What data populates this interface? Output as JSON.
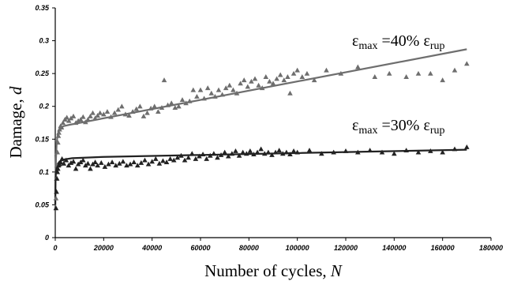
{
  "chart_data": {
    "type": "scatter",
    "xlabel": "Number of cycles,",
    "xlabel_var": "N",
    "ylabel": "Damage,",
    "ylabel_var": "d",
    "xlim": [
      0,
      180000
    ],
    "ylim": [
      0,
      0.35
    ],
    "x_ticks": [
      "0",
      "20000",
      "40000",
      "60000",
      "80000",
      "100000",
      "120000",
      "140000",
      "160000",
      "180000"
    ],
    "y_ticks": [
      "0",
      "0.05",
      "0.1",
      "0.15",
      "0.2",
      "0.25",
      "0.3",
      "0.35"
    ],
    "grid": false,
    "marker": "triangle",
    "series": [
      {
        "label_parts": [
          "ε",
          "max",
          " =40% ε",
          "rup"
        ],
        "color": "#6e6e6e",
        "points": [
          [
            300,
            0.06
          ],
          [
            500,
            0.09
          ],
          [
            700,
            0.11
          ],
          [
            900,
            0.13
          ],
          [
            1100,
            0.145
          ],
          [
            1300,
            0.155
          ],
          [
            1500,
            0.16
          ],
          [
            1800,
            0.165
          ],
          [
            2200,
            0.17
          ],
          [
            2600,
            0.168
          ],
          [
            3200,
            0.175
          ],
          [
            4000,
            0.18
          ],
          [
            4800,
            0.183
          ],
          [
            5600,
            0.178
          ],
          [
            6500,
            0.182
          ],
          [
            7500,
            0.185
          ],
          [
            8500,
            0.175
          ],
          [
            9500,
            0.178
          ],
          [
            10500,
            0.18
          ],
          [
            11500,
            0.184
          ],
          [
            12500,
            0.176
          ],
          [
            13500,
            0.18
          ],
          [
            14500,
            0.185
          ],
          [
            15500,
            0.19
          ],
          [
            16500,
            0.182
          ],
          [
            17500,
            0.186
          ],
          [
            18500,
            0.19
          ],
          [
            20000,
            0.188
          ],
          [
            21500,
            0.192
          ],
          [
            23000,
            0.184
          ],
          [
            24500,
            0.19
          ],
          [
            26000,
            0.195
          ],
          [
            27500,
            0.2
          ],
          [
            29000,
            0.188
          ],
          [
            30500,
            0.186
          ],
          [
            32000,
            0.192
          ],
          [
            33500,
            0.196
          ],
          [
            35000,
            0.2
          ],
          [
            36500,
            0.185
          ],
          [
            38000,
            0.19
          ],
          [
            39500,
            0.197
          ],
          [
            41000,
            0.2
          ],
          [
            42500,
            0.192
          ],
          [
            44000,
            0.198
          ],
          [
            45000,
            0.24
          ],
          [
            46500,
            0.202
          ],
          [
            48000,
            0.205
          ],
          [
            49500,
            0.198
          ],
          [
            51000,
            0.2
          ],
          [
            52500,
            0.21
          ],
          [
            54000,
            0.205
          ],
          [
            55500,
            0.208
          ],
          [
            57000,
            0.225
          ],
          [
            58500,
            0.215
          ],
          [
            60000,
            0.225
          ],
          [
            61500,
            0.212
          ],
          [
            63000,
            0.228
          ],
          [
            64500,
            0.22
          ],
          [
            66000,
            0.215
          ],
          [
            67500,
            0.225
          ],
          [
            69000,
            0.218
          ],
          [
            70500,
            0.228
          ],
          [
            72000,
            0.232
          ],
          [
            73500,
            0.225
          ],
          [
            75000,
            0.22
          ],
          [
            76500,
            0.235
          ],
          [
            78000,
            0.24
          ],
          [
            79500,
            0.23
          ],
          [
            81000,
            0.238
          ],
          [
            82500,
            0.242
          ],
          [
            84000,
            0.232
          ],
          [
            85500,
            0.228
          ],
          [
            87000,
            0.245
          ],
          [
            88500,
            0.238
          ],
          [
            90000,
            0.235
          ],
          [
            91500,
            0.242
          ],
          [
            93000,
            0.248
          ],
          [
            94500,
            0.24
          ],
          [
            96000,
            0.245
          ],
          [
            97000,
            0.22
          ],
          [
            98500,
            0.25
          ],
          [
            100000,
            0.255
          ],
          [
            102000,
            0.245
          ],
          [
            104000,
            0.25
          ],
          [
            107000,
            0.24
          ],
          [
            112000,
            0.255
          ],
          [
            118000,
            0.25
          ],
          [
            125000,
            0.26
          ],
          [
            132000,
            0.245
          ],
          [
            138000,
            0.25
          ],
          [
            145000,
            0.245
          ],
          [
            150000,
            0.25
          ],
          [
            155000,
            0.25
          ],
          [
            160000,
            0.24
          ],
          [
            165000,
            0.255
          ],
          [
            170000,
            0.265
          ]
        ]
      },
      {
        "label_parts": [
          "ε",
          "max",
          " =30% ε",
          "rup"
        ],
        "color": "#222222",
        "points": [
          [
            300,
            0.045
          ],
          [
            500,
            0.07
          ],
          [
            700,
            0.09
          ],
          [
            900,
            0.1
          ],
          [
            1100,
            0.105
          ],
          [
            1400,
            0.11
          ],
          [
            1800,
            0.112
          ],
          [
            2200,
            0.115
          ],
          [
            2800,
            0.12
          ],
          [
            3500,
            0.113
          ],
          [
            4500,
            0.118
          ],
          [
            5500,
            0.11
          ],
          [
            6500,
            0.114
          ],
          [
            7500,
            0.116
          ],
          [
            8500,
            0.105
          ],
          [
            9500,
            0.112
          ],
          [
            10500,
            0.115
          ],
          [
            11500,
            0.118
          ],
          [
            12500,
            0.11
          ],
          [
            13500,
            0.113
          ],
          [
            14500,
            0.105
          ],
          [
            15500,
            0.112
          ],
          [
            16500,
            0.115
          ],
          [
            17500,
            0.11
          ],
          [
            19000,
            0.114
          ],
          [
            20500,
            0.108
          ],
          [
            22000,
            0.112
          ],
          [
            23500,
            0.115
          ],
          [
            25000,
            0.11
          ],
          [
            26500,
            0.113
          ],
          [
            28000,
            0.116
          ],
          [
            29500,
            0.11
          ],
          [
            31000,
            0.112
          ],
          [
            32500,
            0.115
          ],
          [
            34000,
            0.11
          ],
          [
            35500,
            0.114
          ],
          [
            37000,
            0.118
          ],
          [
            38500,
            0.112
          ],
          [
            40000,
            0.116
          ],
          [
            41500,
            0.12
          ],
          [
            43000,
            0.113
          ],
          [
            44500,
            0.117
          ],
          [
            46000,
            0.115
          ],
          [
            47500,
            0.12
          ],
          [
            49000,
            0.118
          ],
          [
            50500,
            0.122
          ],
          [
            52000,
            0.125
          ],
          [
            53500,
            0.118
          ],
          [
            55000,
            0.122
          ],
          [
            56500,
            0.128
          ],
          [
            58000,
            0.12
          ],
          [
            59500,
            0.124
          ],
          [
            61000,
            0.127
          ],
          [
            62500,
            0.12
          ],
          [
            64000,
            0.125
          ],
          [
            65500,
            0.128
          ],
          [
            67000,
            0.122
          ],
          [
            68500,
            0.126
          ],
          [
            70000,
            0.13
          ],
          [
            71500,
            0.124
          ],
          [
            73000,
            0.128
          ],
          [
            74500,
            0.132
          ],
          [
            76000,
            0.125
          ],
          [
            77500,
            0.13
          ],
          [
            79000,
            0.128
          ],
          [
            80500,
            0.132
          ],
          [
            82000,
            0.127
          ],
          [
            83500,
            0.13
          ],
          [
            85000,
            0.135
          ],
          [
            86500,
            0.128
          ],
          [
            88000,
            0.13
          ],
          [
            89500,
            0.126
          ],
          [
            91000,
            0.13
          ],
          [
            92500,
            0.133
          ],
          [
            94000,
            0.128
          ],
          [
            95500,
            0.13
          ],
          [
            97000,
            0.127
          ],
          [
            98500,
            0.132
          ],
          [
            100000,
            0.13
          ],
          [
            105000,
            0.133
          ],
          [
            110000,
            0.128
          ],
          [
            115000,
            0.13
          ],
          [
            120000,
            0.132
          ],
          [
            125000,
            0.13
          ],
          [
            130000,
            0.133
          ],
          [
            135000,
            0.13
          ],
          [
            140000,
            0.128
          ],
          [
            145000,
            0.133
          ],
          [
            150000,
            0.13
          ],
          [
            155000,
            0.132
          ],
          [
            160000,
            0.13
          ],
          [
            165000,
            0.135
          ],
          [
            170000,
            0.138
          ]
        ]
      }
    ],
    "fits": [
      {
        "color": "#6e6e6e",
        "points": [
          [
            0,
            0.04
          ],
          [
            100,
            0.09
          ],
          [
            300,
            0.12
          ],
          [
            600,
            0.145
          ],
          [
            1000,
            0.157
          ],
          [
            1500,
            0.163
          ],
          [
            2200,
            0.167
          ],
          [
            3500,
            0.17
          ],
          [
            6000,
            0.172
          ],
          [
            170000,
            0.287
          ]
        ]
      },
      {
        "color": "#222222",
        "points": [
          [
            0,
            0.05
          ],
          [
            100,
            0.085
          ],
          [
            300,
            0.1
          ],
          [
            600,
            0.107
          ],
          [
            1000,
            0.112
          ],
          [
            1800,
            0.116
          ],
          [
            3500,
            0.119
          ],
          [
            7000,
            0.121
          ],
          [
            20000,
            0.123
          ],
          [
            170000,
            0.134
          ]
        ]
      }
    ]
  }
}
